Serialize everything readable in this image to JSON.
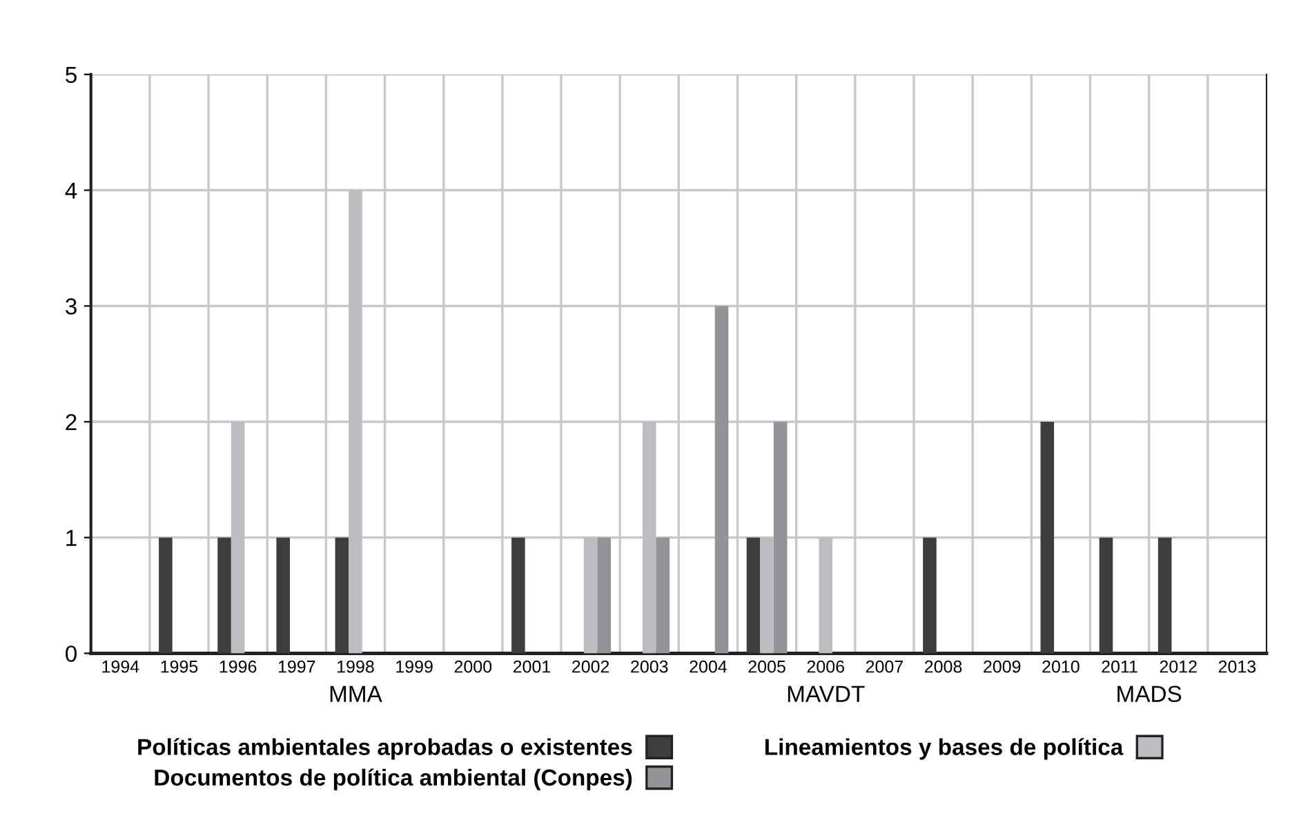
{
  "chart_data": {
    "type": "bar",
    "categories": [
      "1994",
      "1995",
      "1996",
      "1997",
      "1998",
      "1999",
      "2000",
      "2001",
      "2002",
      "2003",
      "2004",
      "2005",
      "2006",
      "2007",
      "2008",
      "2009",
      "2010",
      "2011",
      "2012",
      "2013"
    ],
    "series": [
      {
        "name": "Políticas ambientales aprobadas o existentes",
        "color": "#3d3d3d",
        "values": [
          0,
          1,
          1,
          1,
          1,
          0,
          0,
          1,
          0,
          0,
          0,
          1,
          0,
          0,
          1,
          0,
          2,
          1,
          1,
          0
        ]
      },
      {
        "name": "Lineamientos y bases de política",
        "color": "#bcbdc0",
        "values": [
          0,
          0,
          2,
          0,
          4,
          0,
          0,
          0,
          1,
          2,
          0,
          1,
          1,
          0,
          0,
          0,
          0,
          0,
          0,
          0
        ]
      },
      {
        "name": "Documentos de política ambiental (Conpes)",
        "color": "#939497",
        "values": [
          0,
          0,
          0,
          0,
          0,
          0,
          0,
          0,
          1,
          1,
          3,
          2,
          0,
          0,
          0,
          0,
          0,
          0,
          0,
          0
        ]
      }
    ],
    "ylim": [
      0,
      5
    ],
    "yticks": [
      0,
      1,
      2,
      3,
      4,
      5
    ],
    "grid": true,
    "legend": "bottom",
    "annotations": [
      "MMA",
      "MAVDT",
      "MADS"
    ]
  }
}
